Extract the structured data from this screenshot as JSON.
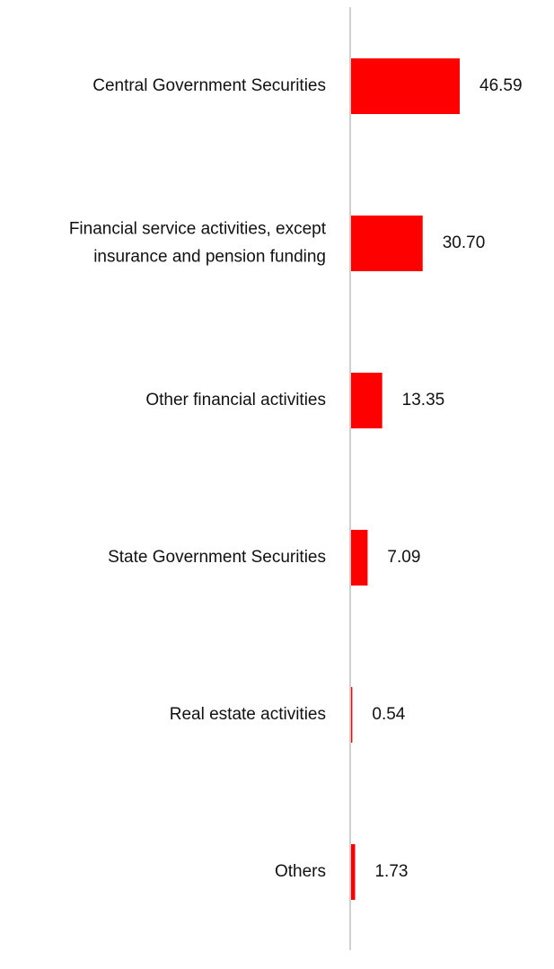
{
  "chart_data": {
    "type": "bar",
    "orientation": "horizontal",
    "title": "",
    "xlabel": "",
    "ylabel": "",
    "categories": [
      "Central Government Securities",
      "Financial service activities, except insurance and pension funding",
      "Other financial activities",
      "State Government Securities",
      "Real estate activities",
      "Others"
    ],
    "category_lines": [
      [
        "Central Government Securities"
      ],
      [
        "Financial service activities, except",
        "insurance and pension funding"
      ],
      [
        "Other financial activities"
      ],
      [
        "State Government Securities"
      ],
      [
        "Real estate activities"
      ],
      [
        "Others"
      ]
    ],
    "values": [
      46.59,
      30.7,
      13.35,
      7.09,
      0.54,
      1.73
    ],
    "value_labels": [
      "46.59",
      "30.70",
      "13.35",
      "7.09",
      "0.54",
      "1.73"
    ],
    "xlim": [
      0,
      50
    ],
    "grid": false,
    "legend": "none",
    "bar_color": "#ff0000",
    "axis_color": "#d0d0d0",
    "text_color": "#111111"
  }
}
